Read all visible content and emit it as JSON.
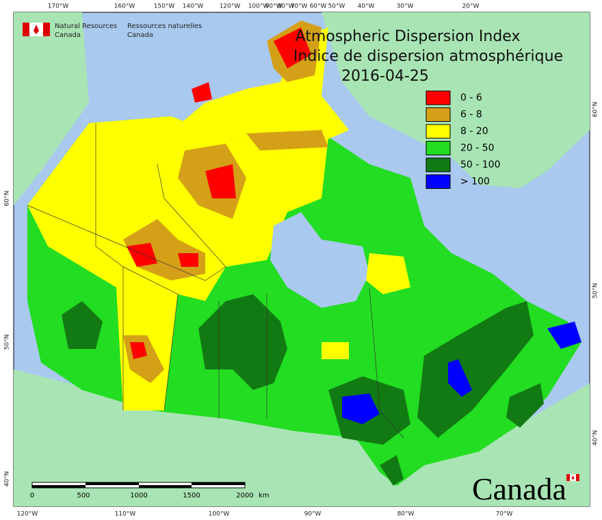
{
  "header": {
    "agency_en": [
      "Natural Resources",
      "Canada"
    ],
    "agency_fr": [
      "Ressources naturelles",
      "Canada"
    ]
  },
  "title": {
    "en": "Atmospheric Dispersion Index",
    "fr": "Indice de dispersion atmosphérique",
    "date": "2016-04-25"
  },
  "legend": [
    {
      "label": "0 - 6",
      "color": "#ff0000"
    },
    {
      "label": "6 - 8",
      "color": "#d4a017"
    },
    {
      "label": "8 - 20",
      "color": "#ffff00"
    },
    {
      "label": "20 - 50",
      "color": "#22dd22"
    },
    {
      "label": "50 - 100",
      "color": "#127a12"
    },
    {
      "label": "> 100",
      "color": "#0000ff"
    }
  ],
  "graticule": {
    "top": [
      "170°W",
      "160°W",
      "150°W",
      "140°W",
      "120°W",
      "100°W",
      "90°W",
      "80°W",
      "70°W",
      "60°W",
      "50°W",
      "40°W",
      "30°W",
      "20°W"
    ],
    "bottom": [
      "120°W",
      "110°W",
      "100°W",
      "90°W",
      "80°W",
      "70°W"
    ],
    "right": [
      "60°N",
      "50°N",
      "40°N"
    ],
    "left": [
      "60°N",
      "50°N",
      "40°N"
    ]
  },
  "scale_bar": {
    "labels": [
      0,
      500,
      1000,
      1500,
      2000
    ],
    "unit": "km"
  },
  "wordmark": "Canada"
}
